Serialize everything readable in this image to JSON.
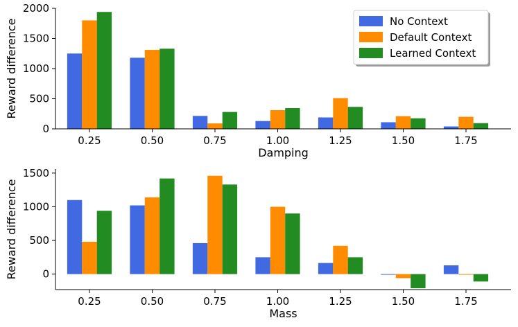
{
  "chart_data": [
    {
      "type": "bar",
      "xlabel": "Damping",
      "ylabel": "Reward difference",
      "ylim": [
        0,
        2000
      ],
      "yticks": [
        0,
        500,
        1000,
        1500,
        2000
      ],
      "categories": [
        "0.25",
        "0.50",
        "0.75",
        "1.00",
        "1.25",
        "1.50",
        "1.75"
      ],
      "series": [
        {
          "name": "No Context",
          "color": "#4169e1",
          "values": [
            1250,
            1180,
            215,
            130,
            190,
            110,
            40
          ]
        },
        {
          "name": "Default Context",
          "color": "#ff8c00",
          "values": [
            1800,
            1310,
            90,
            310,
            510,
            210,
            200
          ]
        },
        {
          "name": "Learned Context",
          "color": "#228b22",
          "values": [
            1940,
            1330,
            280,
            345,
            365,
            175,
            95
          ]
        }
      ],
      "legend": {
        "location": "top-right",
        "entries": [
          "No Context",
          "Default Context",
          "Learned Context"
        ]
      }
    },
    {
      "type": "bar",
      "xlabel": "Mass",
      "ylabel": "Reward difference",
      "ylim": [
        -230,
        1560
      ],
      "yticks": [
        0,
        500,
        1000,
        1500
      ],
      "categories": [
        "0.25",
        "0.50",
        "0.75",
        "1.00",
        "1.25",
        "1.50",
        "1.75"
      ],
      "series": [
        {
          "name": "No Context",
          "color": "#4169e1",
          "values": [
            1100,
            1020,
            460,
            250,
            165,
            -10,
            130
          ]
        },
        {
          "name": "Default Context",
          "color": "#ff8c00",
          "values": [
            480,
            1140,
            1460,
            1000,
            420,
            -60,
            -10
          ]
        },
        {
          "name": "Learned Context",
          "color": "#228b22",
          "values": [
            940,
            1420,
            1330,
            900,
            250,
            -210,
            -110
          ]
        }
      ]
    }
  ]
}
